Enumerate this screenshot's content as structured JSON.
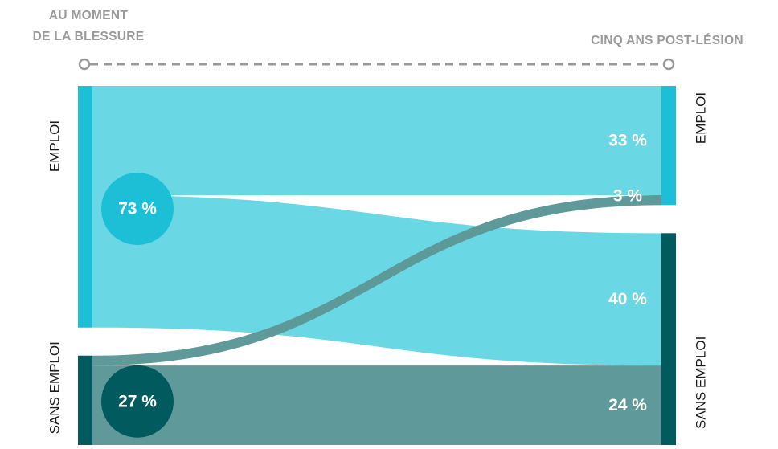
{
  "chart_data": {
    "type": "sankey",
    "left_header": {
      "line1": "AU MOMENT",
      "line2": "DE LA BLESSURE"
    },
    "right_header": "CINQ ANS POST-LÉSION",
    "left_nodes": [
      {
        "id": "emploi",
        "label": "EMPLOI",
        "value": 73,
        "value_label": "73 %",
        "color": "#1dbfd6"
      },
      {
        "id": "sans_emploi",
        "label": "SANS EMPLOI",
        "value": 27,
        "value_label": "27 %",
        "color": "#005a5e"
      }
    ],
    "right_nodes": [
      {
        "id": "emploi",
        "label": "EMPLOI",
        "value": 36,
        "color": "#1dbfd6"
      },
      {
        "id": "sans_emploi",
        "label": "SANS EMPLOI",
        "value": 64,
        "color": "#005a5e"
      }
    ],
    "flows": [
      {
        "from": "emploi",
        "to": "emploi",
        "value": 33,
        "label": "33 %",
        "color": "#67d6e4"
      },
      {
        "from": "emploi",
        "to": "sans_emploi",
        "value": 40,
        "label": "40 %",
        "color": "#67d6e4"
      },
      {
        "from": "sans_emploi",
        "to": "emploi",
        "value": 3,
        "label": "3 %",
        "color": "#5d9797"
      },
      {
        "from": "sans_emploi",
        "to": "sans_emploi",
        "value": 24,
        "label": "24 %",
        "color": "#5d9797"
      }
    ],
    "colors": {
      "header_text": "#9a9a9a",
      "timeline": "#9a9a9a",
      "label_text": "#1a1a1a",
      "flow_label_text": "#ffffff"
    }
  }
}
